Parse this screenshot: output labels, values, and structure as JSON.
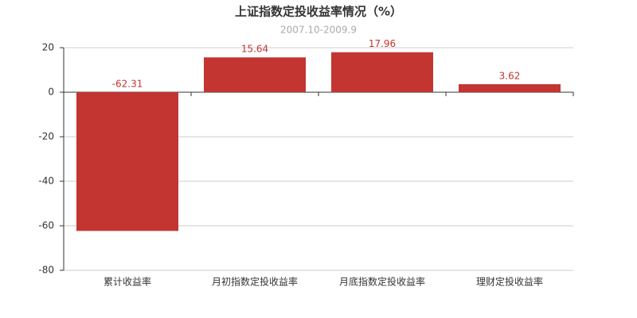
{
  "chart_data": {
    "type": "bar",
    "title": "上证指数定投收益率情况（%）",
    "subtitle": "2007.10-2009.9",
    "categories": [
      "累计收益率",
      "月初指数定投收益率",
      "月底指数定投收益率",
      "理财定投收益率"
    ],
    "values": [
      -62.31,
      15.64,
      17.96,
      3.62
    ],
    "color": "#c23531",
    "ylim": [
      -80,
      20
    ],
    "yticks": [
      -80,
      -60,
      -40,
      -20,
      0,
      20
    ],
    "grid": true
  }
}
